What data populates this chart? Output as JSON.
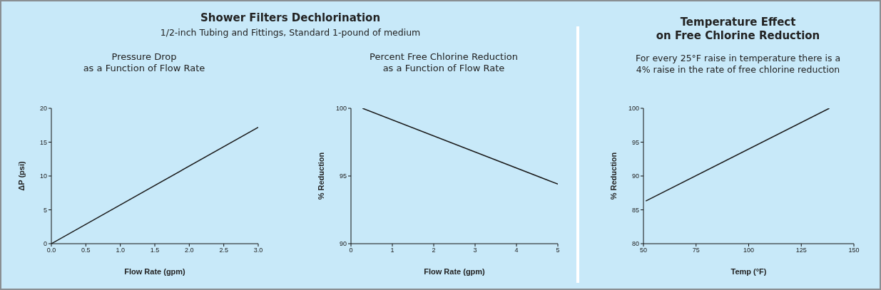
{
  "chart_data": [
    {
      "type": "line",
      "title": "Pressure Drop\nas a Function of Flow Rate",
      "annotations": [
        "Shower Filters Dechlorination",
        "1/2-inch Tubing and Fittings, Standard 1-pound of medium"
      ],
      "xlabel": "Flow Rate (gpm)",
      "ylabel": "ΔP (psi)",
      "x": [
        0,
        3.0
      ],
      "values": [
        0,
        17.2
      ],
      "color": "#1a1a1a",
      "xlim": [
        0,
        3
      ],
      "xticks": [
        {
          "value": 0,
          "label": "0.0"
        },
        0.5,
        {
          "value": 1,
          "label": "1.0"
        },
        1.5,
        {
          "value": 2,
          "label": "2.0"
        },
        2.5,
        {
          "value": 3,
          "label": "3.0"
        }
      ],
      "ylim": [
        0,
        20
      ],
      "yticks": [
        0,
        5,
        10,
        15,
        20
      ]
    },
    {
      "type": "line",
      "title": "Percent Free Chlorine Reduction\nas a Function of Flow Rate",
      "xlabel": "Flow Rate (gpm)",
      "ylabel": "% Reduction",
      "x": [
        0.28,
        5
      ],
      "values": [
        100,
        94.4
      ],
      "color": "#1a1a1a",
      "xlim": [
        0,
        5
      ],
      "xticks": [
        0,
        1,
        2,
        3,
        4,
        5
      ],
      "ylim": [
        90,
        100
      ],
      "yticks": [
        90,
        95,
        100
      ]
    },
    {
      "type": "line",
      "title": "Temperature Effect\non Free Chlorine Reduction",
      "subtitle": "For every 25°F raise in temperature there is a\n4% raise in the rate of free chlorine reduction",
      "xlabel": "Temp (°F)",
      "ylabel": "% Reduction",
      "x": [
        51.1,
        138.3
      ],
      "values": [
        86.3,
        100
      ],
      "color": "#1a1a1a",
      "xlim": [
        50,
        150
      ],
      "xticks": [
        50,
        75,
        100,
        125,
        150
      ],
      "ylim": [
        80,
        100
      ],
      "yticks": [
        80,
        85,
        90,
        95,
        100
      ]
    }
  ]
}
